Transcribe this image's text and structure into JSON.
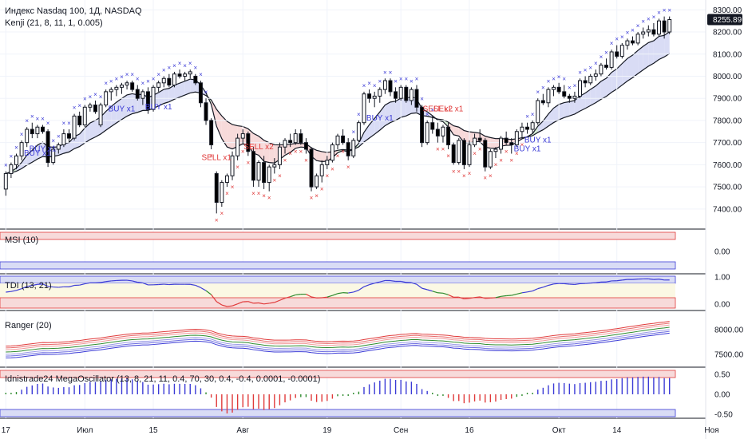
{
  "header": {
    "symbol_title": "Индекс Nasdaq 100, 1Д, NASDAQ",
    "indicator_kenji": "Kenji (21, 8, 11, 1, 0.005)"
  },
  "colors": {
    "up_candle": "#ffffff",
    "down_candle": "#000000",
    "buy_marker": "#3b3bd6",
    "sell_marker": "#e03a3a",
    "band_blue": "#d9dcf5",
    "band_red": "#f7dada",
    "band_green": "#d6ecd6",
    "price_label_bg": "#131722"
  },
  "panes": {
    "msi": {
      "label": "MSI (10)",
      "ticks": [
        "0.00"
      ]
    },
    "tdi": {
      "label": "TDI (13, 21)",
      "ticks": [
        "1.00",
        "0.00"
      ]
    },
    "ranger": {
      "label": "Ranger (20)",
      "ticks": [
        "8000.00",
        "7500.00"
      ]
    },
    "mega": {
      "label": "Idnistrade24 MegaOscillator (13, 8, 21, 11, 0.4, 70, 30, 0.4, -0.4, 0.0001, -0.0001)",
      "ticks": [
        "0.50",
        "0.00",
        "-0.50"
      ]
    }
  },
  "chart_data": {
    "type": "candlestick",
    "price_axis_ticks": [
      "8300.00",
      "8200.00",
      "8100.00",
      "8000.00",
      "7900.00",
      "7800.00",
      "7700.00",
      "7600.00",
      "7500.00",
      "7400.00"
    ],
    "last_price": "8255.89",
    "ylim": [
      7320,
      8330
    ],
    "x_tick_labels": [
      "17",
      "Июл",
      "15",
      "Авг",
      "19",
      "Сен",
      "16",
      "Окт",
      "14",
      "Ноя"
    ],
    "x_tick_index": [
      0,
      15,
      28,
      45,
      61,
      75,
      88,
      105,
      116,
      134
    ],
    "candles": [
      {
        "o": 7490,
        "h": 7570,
        "l": 7460,
        "c": 7560
      },
      {
        "o": 7560,
        "h": 7610,
        "l": 7540,
        "c": 7600
      },
      {
        "o": 7600,
        "h": 7650,
        "l": 7580,
        "c": 7640
      },
      {
        "o": 7640,
        "h": 7710,
        "l": 7620,
        "c": 7700
      },
      {
        "o": 7700,
        "h": 7770,
        "l": 7680,
        "c": 7760
      },
      {
        "o": 7760,
        "h": 7790,
        "l": 7720,
        "c": 7740
      },
      {
        "o": 7740,
        "h": 7780,
        "l": 7720,
        "c": 7770
      },
      {
        "o": 7770,
        "h": 7780,
        "l": 7740,
        "c": 7750
      },
      {
        "o": 7750,
        "h": 7760,
        "l": 7590,
        "c": 7610
      },
      {
        "o": 7610,
        "h": 7680,
        "l": 7600,
        "c": 7670
      },
      {
        "o": 7670,
        "h": 7700,
        "l": 7650,
        "c": 7690
      },
      {
        "o": 7690,
        "h": 7760,
        "l": 7680,
        "c": 7740
      },
      {
        "o": 7740,
        "h": 7760,
        "l": 7700,
        "c": 7720
      },
      {
        "o": 7720,
        "h": 7830,
        "l": 7710,
        "c": 7820
      },
      {
        "o": 7820,
        "h": 7840,
        "l": 7770,
        "c": 7780
      },
      {
        "o": 7780,
        "h": 7870,
        "l": 7770,
        "c": 7860
      },
      {
        "o": 7860,
        "h": 7880,
        "l": 7840,
        "c": 7870
      },
      {
        "o": 7870,
        "h": 7890,
        "l": 7830,
        "c": 7840
      },
      {
        "o": 7780,
        "h": 7880,
        "l": 7770,
        "c": 7870
      },
      {
        "o": 7870,
        "h": 7940,
        "l": 7860,
        "c": 7930
      },
      {
        "o": 7930,
        "h": 7950,
        "l": 7890,
        "c": 7940
      },
      {
        "o": 7940,
        "h": 7960,
        "l": 7910,
        "c": 7950
      },
      {
        "o": 7950,
        "h": 7970,
        "l": 7920,
        "c": 7960
      },
      {
        "o": 7960,
        "h": 7980,
        "l": 7940,
        "c": 7970
      },
      {
        "o": 7970,
        "h": 7980,
        "l": 7930,
        "c": 7940
      },
      {
        "o": 7940,
        "h": 7960,
        "l": 7890,
        "c": 7900
      },
      {
        "o": 7900,
        "h": 7940,
        "l": 7870,
        "c": 7930
      },
      {
        "o": 7930,
        "h": 7950,
        "l": 7830,
        "c": 7850
      },
      {
        "o": 7850,
        "h": 7960,
        "l": 7840,
        "c": 7950
      },
      {
        "o": 7950,
        "h": 7980,
        "l": 7930,
        "c": 7970
      },
      {
        "o": 7970,
        "h": 8000,
        "l": 7950,
        "c": 7990
      },
      {
        "o": 7990,
        "h": 8010,
        "l": 7950,
        "c": 7960
      },
      {
        "o": 7960,
        "h": 8020,
        "l": 7950,
        "c": 8010
      },
      {
        "o": 8010,
        "h": 8030,
        "l": 7990,
        "c": 8000
      },
      {
        "o": 8000,
        "h": 8020,
        "l": 7980,
        "c": 8010
      },
      {
        "o": 8010,
        "h": 8030,
        "l": 7990,
        "c": 8020
      },
      {
        "o": 8000,
        "h": 8010,
        "l": 7960,
        "c": 7970
      },
      {
        "o": 7970,
        "h": 7980,
        "l": 7860,
        "c": 7880
      },
      {
        "o": 7880,
        "h": 7900,
        "l": 7780,
        "c": 7800
      },
      {
        "o": 7800,
        "h": 7810,
        "l": 7670,
        "c": 7690
      },
      {
        "o": 7560,
        "h": 7570,
        "l": 7380,
        "c": 7430
      },
      {
        "o": 7430,
        "h": 7530,
        "l": 7410,
        "c": 7520
      },
      {
        "o": 7520,
        "h": 7560,
        "l": 7500,
        "c": 7550
      },
      {
        "o": 7550,
        "h": 7660,
        "l": 7530,
        "c": 7640
      },
      {
        "o": 7640,
        "h": 7740,
        "l": 7620,
        "c": 7720
      },
      {
        "o": 7720,
        "h": 7760,
        "l": 7690,
        "c": 7740
      },
      {
        "o": 7740,
        "h": 7750,
        "l": 7640,
        "c": 7660
      },
      {
        "o": 7660,
        "h": 7680,
        "l": 7500,
        "c": 7530
      },
      {
        "o": 7530,
        "h": 7620,
        "l": 7500,
        "c": 7610
      },
      {
        "o": 7610,
        "h": 7640,
        "l": 7490,
        "c": 7520
      },
      {
        "o": 7520,
        "h": 7600,
        "l": 7480,
        "c": 7590
      },
      {
        "o": 7590,
        "h": 7630,
        "l": 7560,
        "c": 7600
      },
      {
        "o": 7600,
        "h": 7700,
        "l": 7580,
        "c": 7680
      },
      {
        "o": 7680,
        "h": 7720,
        "l": 7650,
        "c": 7710
      },
      {
        "o": 7710,
        "h": 7740,
        "l": 7680,
        "c": 7700
      },
      {
        "o": 7700,
        "h": 7760,
        "l": 7690,
        "c": 7740
      },
      {
        "o": 7740,
        "h": 7760,
        "l": 7690,
        "c": 7700
      },
      {
        "o": 7700,
        "h": 7720,
        "l": 7650,
        "c": 7670
      },
      {
        "o": 7670,
        "h": 7680,
        "l": 7480,
        "c": 7500
      },
      {
        "o": 7500,
        "h": 7560,
        "l": 7490,
        "c": 7550
      },
      {
        "o": 7550,
        "h": 7620,
        "l": 7520,
        "c": 7600
      },
      {
        "o": 7600,
        "h": 7640,
        "l": 7580,
        "c": 7620
      },
      {
        "o": 7620,
        "h": 7700,
        "l": 7610,
        "c": 7690
      },
      {
        "o": 7690,
        "h": 7740,
        "l": 7670,
        "c": 7730
      },
      {
        "o": 7730,
        "h": 7760,
        "l": 7690,
        "c": 7700
      },
      {
        "o": 7700,
        "h": 7720,
        "l": 7620,
        "c": 7640
      },
      {
        "o": 7640,
        "h": 7720,
        "l": 7630,
        "c": 7710
      },
      {
        "o": 7710,
        "h": 7800,
        "l": 7700,
        "c": 7790
      },
      {
        "o": 7790,
        "h": 7930,
        "l": 7780,
        "c": 7920
      },
      {
        "o": 7920,
        "h": 7940,
        "l": 7880,
        "c": 7900
      },
      {
        "o": 7900,
        "h": 7930,
        "l": 7860,
        "c": 7910
      },
      {
        "o": 7910,
        "h": 7950,
        "l": 7880,
        "c": 7940
      },
      {
        "o": 7940,
        "h": 7990,
        "l": 7920,
        "c": 7980
      },
      {
        "o": 7980,
        "h": 7990,
        "l": 7910,
        "c": 7930
      },
      {
        "o": 7930,
        "h": 7950,
        "l": 7880,
        "c": 7900
      },
      {
        "o": 7900,
        "h": 7960,
        "l": 7890,
        "c": 7950
      },
      {
        "o": 7950,
        "h": 7960,
        "l": 7880,
        "c": 7890
      },
      {
        "o": 7890,
        "h": 7950,
        "l": 7870,
        "c": 7940
      },
      {
        "o": 7940,
        "h": 7960,
        "l": 7840,
        "c": 7860
      },
      {
        "o": 7860,
        "h": 7870,
        "l": 7680,
        "c": 7700
      },
      {
        "o": 7700,
        "h": 7800,
        "l": 7690,
        "c": 7790
      },
      {
        "o": 7790,
        "h": 7820,
        "l": 7740,
        "c": 7760
      },
      {
        "o": 7760,
        "h": 7790,
        "l": 7700,
        "c": 7730
      },
      {
        "o": 7730,
        "h": 7780,
        "l": 7700,
        "c": 7770
      },
      {
        "o": 7770,
        "h": 7790,
        "l": 7670,
        "c": 7690
      },
      {
        "o": 7690,
        "h": 7700,
        "l": 7600,
        "c": 7610
      },
      {
        "o": 7610,
        "h": 7720,
        "l": 7600,
        "c": 7710
      },
      {
        "o": 7710,
        "h": 7720,
        "l": 7580,
        "c": 7600
      },
      {
        "o": 7600,
        "h": 7710,
        "l": 7590,
        "c": 7690
      },
      {
        "o": 7690,
        "h": 7740,
        "l": 7680,
        "c": 7720
      },
      {
        "o": 7720,
        "h": 7760,
        "l": 7700,
        "c": 7710
      },
      {
        "o": 7710,
        "h": 7720,
        "l": 7570,
        "c": 7590
      },
      {
        "o": 7590,
        "h": 7670,
        "l": 7580,
        "c": 7660
      },
      {
        "o": 7660,
        "h": 7680,
        "l": 7630,
        "c": 7670
      },
      {
        "o": 7670,
        "h": 7730,
        "l": 7650,
        "c": 7720
      },
      {
        "o": 7720,
        "h": 7750,
        "l": 7690,
        "c": 7700
      },
      {
        "o": 7700,
        "h": 7720,
        "l": 7650,
        "c": 7690
      },
      {
        "o": 7690,
        "h": 7760,
        "l": 7680,
        "c": 7750
      },
      {
        "o": 7750,
        "h": 7790,
        "l": 7720,
        "c": 7770
      },
      {
        "o": 7770,
        "h": 7790,
        "l": 7740,
        "c": 7760
      },
      {
        "o": 7760,
        "h": 7800,
        "l": 7740,
        "c": 7790
      },
      {
        "o": 7790,
        "h": 7900,
        "l": 7780,
        "c": 7890
      },
      {
        "o": 7890,
        "h": 7920,
        "l": 7870,
        "c": 7880
      },
      {
        "o": 7880,
        "h": 7950,
        "l": 7860,
        "c": 7940
      },
      {
        "o": 7940,
        "h": 7960,
        "l": 7910,
        "c": 7950
      },
      {
        "o": 7950,
        "h": 7970,
        "l": 7920,
        "c": 7930
      },
      {
        "o": 7930,
        "h": 7960,
        "l": 7900,
        "c": 7910
      },
      {
        "o": 7910,
        "h": 7920,
        "l": 7880,
        "c": 7900
      },
      {
        "o": 7900,
        "h": 7930,
        "l": 7880,
        "c": 7910
      },
      {
        "o": 7910,
        "h": 7990,
        "l": 7900,
        "c": 7980
      },
      {
        "o": 7980,
        "h": 8000,
        "l": 7950,
        "c": 7970
      },
      {
        "o": 7970,
        "h": 8010,
        "l": 7960,
        "c": 8000
      },
      {
        "o": 8000,
        "h": 8030,
        "l": 7980,
        "c": 8010
      },
      {
        "o": 8010,
        "h": 8060,
        "l": 8000,
        "c": 8050
      },
      {
        "o": 8050,
        "h": 8080,
        "l": 8030,
        "c": 8040
      },
      {
        "o": 8040,
        "h": 8120,
        "l": 8030,
        "c": 8110
      },
      {
        "o": 8110,
        "h": 8140,
        "l": 8080,
        "c": 8090
      },
      {
        "o": 8090,
        "h": 8150,
        "l": 8080,
        "c": 8140
      },
      {
        "o": 8140,
        "h": 8170,
        "l": 8120,
        "c": 8160
      },
      {
        "o": 8160,
        "h": 8180,
        "l": 8140,
        "c": 8150
      },
      {
        "o": 8150,
        "h": 8200,
        "l": 8140,
        "c": 8190
      },
      {
        "o": 8190,
        "h": 8220,
        "l": 8170,
        "c": 8200
      },
      {
        "o": 8200,
        "h": 8230,
        "l": 8180,
        "c": 8210
      },
      {
        "o": 8210,
        "h": 8240,
        "l": 8180,
        "c": 8190
      },
      {
        "o": 8190,
        "h": 8260,
        "l": 8180,
        "c": 8250
      },
      {
        "o": 8250,
        "h": 8270,
        "l": 8170,
        "c": 8200
      },
      {
        "o": 8200,
        "h": 8270,
        "l": 8190,
        "c": 8256
      }
    ],
    "signals": [
      {
        "type": "buy",
        "label": "BUY x1",
        "index": 6
      },
      {
        "type": "buy",
        "label": "BUY x1",
        "index": 7
      },
      {
        "type": "buy",
        "label": "BUY x1",
        "index": 22
      },
      {
        "type": "buy",
        "label": "BUY x1",
        "index": 29
      },
      {
        "type": "sell",
        "label": "SELL x1",
        "index": 40
      },
      {
        "type": "sell",
        "label": "SELL x2",
        "index": 48
      },
      {
        "type": "buy",
        "label": "BUY x1",
        "index": 71
      },
      {
        "type": "sell",
        "label": "SELL x2",
        "index": 82
      },
      {
        "type": "sell",
        "label": "SELL x1",
        "index": 84
      },
      {
        "type": "buy",
        "label": "BUY x1",
        "index": 99
      },
      {
        "type": "buy",
        "label": "BUY x1",
        "index": 101
      }
    ]
  }
}
